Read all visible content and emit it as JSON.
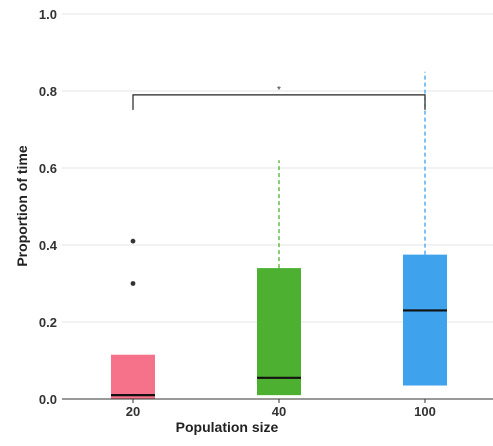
{
  "chart_data": {
    "type": "box",
    "title": "",
    "xlabel": "Population size",
    "ylabel": "Proportion of time",
    "ylim": [
      0.0,
      1.0
    ],
    "yticks": [
      "0.0",
      "0.2",
      "0.4",
      "0.6",
      "0.8",
      "1.0"
    ],
    "grid": true,
    "categories": [
      "20",
      "40",
      "100"
    ],
    "colors": [
      "#F6728A",
      "#4DB030",
      "#3FA2EC"
    ],
    "boxes": [
      {
        "category": "20",
        "min": 0.0,
        "q1": 0.0,
        "median": 0.01,
        "q3": 0.115,
        "max": 0.115,
        "outliers": [
          0.3,
          0.41
        ]
      },
      {
        "category": "40",
        "min": 0.01,
        "q1": 0.01,
        "median": 0.055,
        "q3": 0.34,
        "max": 0.62,
        "outliers": []
      },
      {
        "category": "100",
        "min": 0.035,
        "q1": 0.035,
        "median": 0.23,
        "q3": 0.375,
        "max": 0.85,
        "outliers": []
      }
    ],
    "significance": {
      "from": "20",
      "to": "100",
      "y": 0.79,
      "label": "*"
    }
  }
}
